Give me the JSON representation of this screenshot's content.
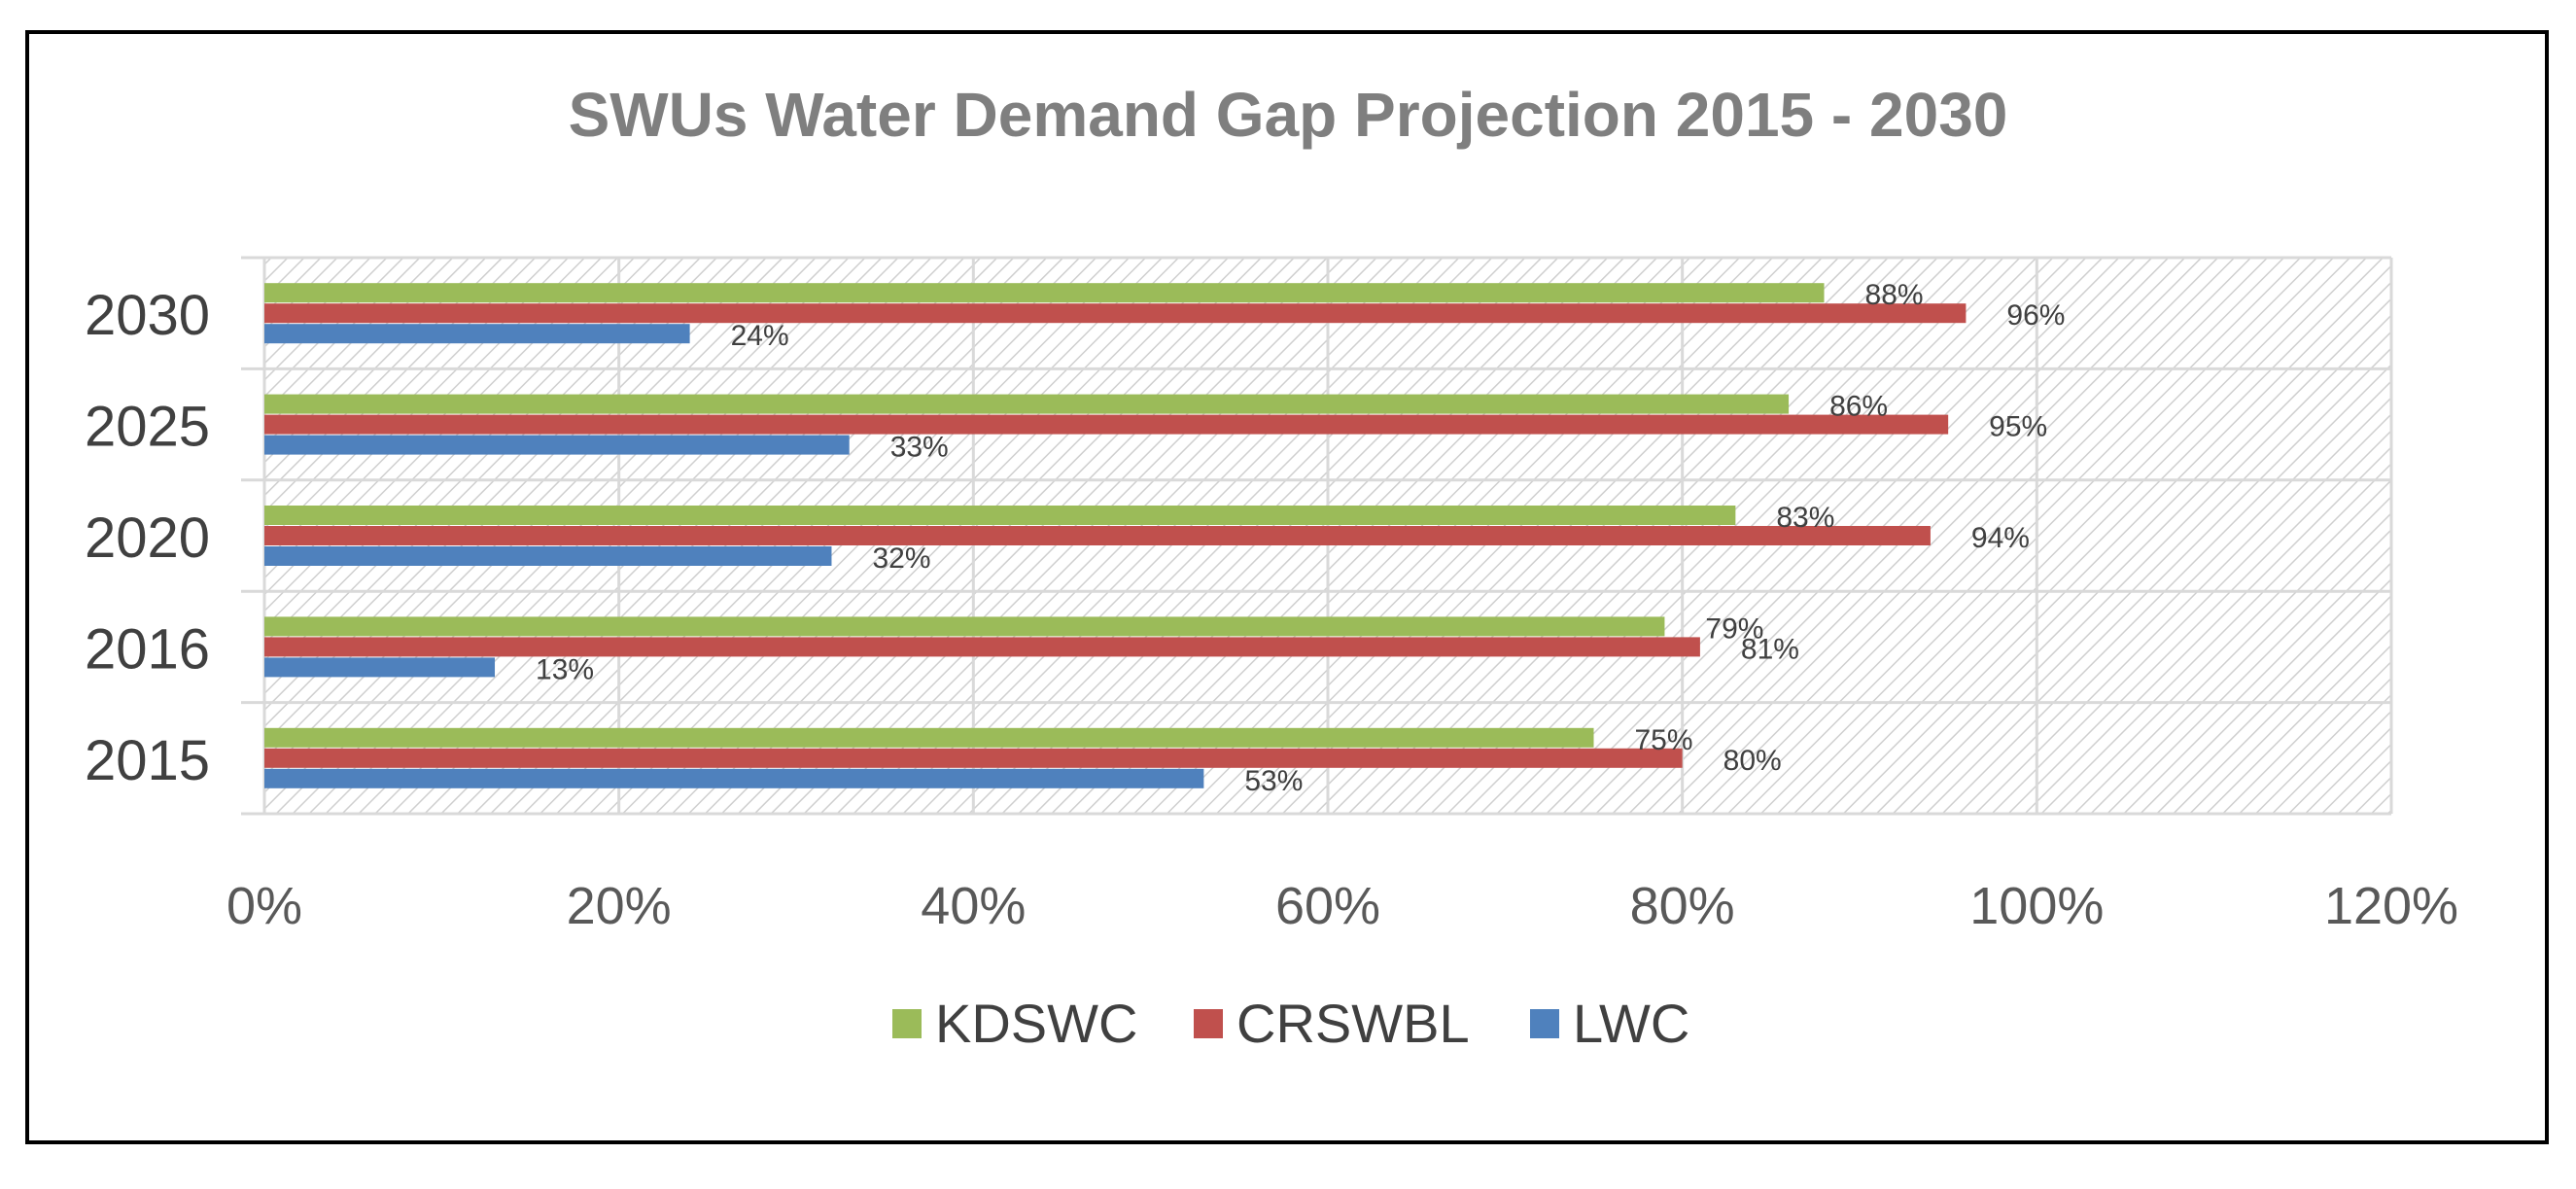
{
  "chart_data": {
    "type": "bar",
    "orientation": "horizontal",
    "title": "SWUs Water Demand Gap Projection 2015 - 2030",
    "xlabel": "",
    "ylabel": "",
    "categories": [
      "2015",
      "2016",
      "2020",
      "2025",
      "2030"
    ],
    "xlim": [
      0,
      120
    ],
    "x_ticks": [
      0,
      20,
      40,
      60,
      80,
      100,
      120
    ],
    "x_tick_labels": [
      "0%",
      "20%",
      "40%",
      "60%",
      "80%",
      "100%",
      "120%"
    ],
    "value_suffix": "%",
    "grid": true,
    "legend_position": "bottom",
    "series": [
      {
        "name": "KDSWC",
        "color": "#9BBB59",
        "values": [
          75,
          79,
          83,
          86,
          88
        ]
      },
      {
        "name": "CRSWBL",
        "color": "#C0504D",
        "values": [
          80,
          81,
          94,
          95,
          96
        ]
      },
      {
        "name": "LWC",
        "color": "#4F81BD",
        "values": [
          53,
          13,
          32,
          33,
          24
        ]
      }
    ],
    "legend_order": [
      "KDSWC",
      "CRSWBL",
      "LWC"
    ]
  }
}
